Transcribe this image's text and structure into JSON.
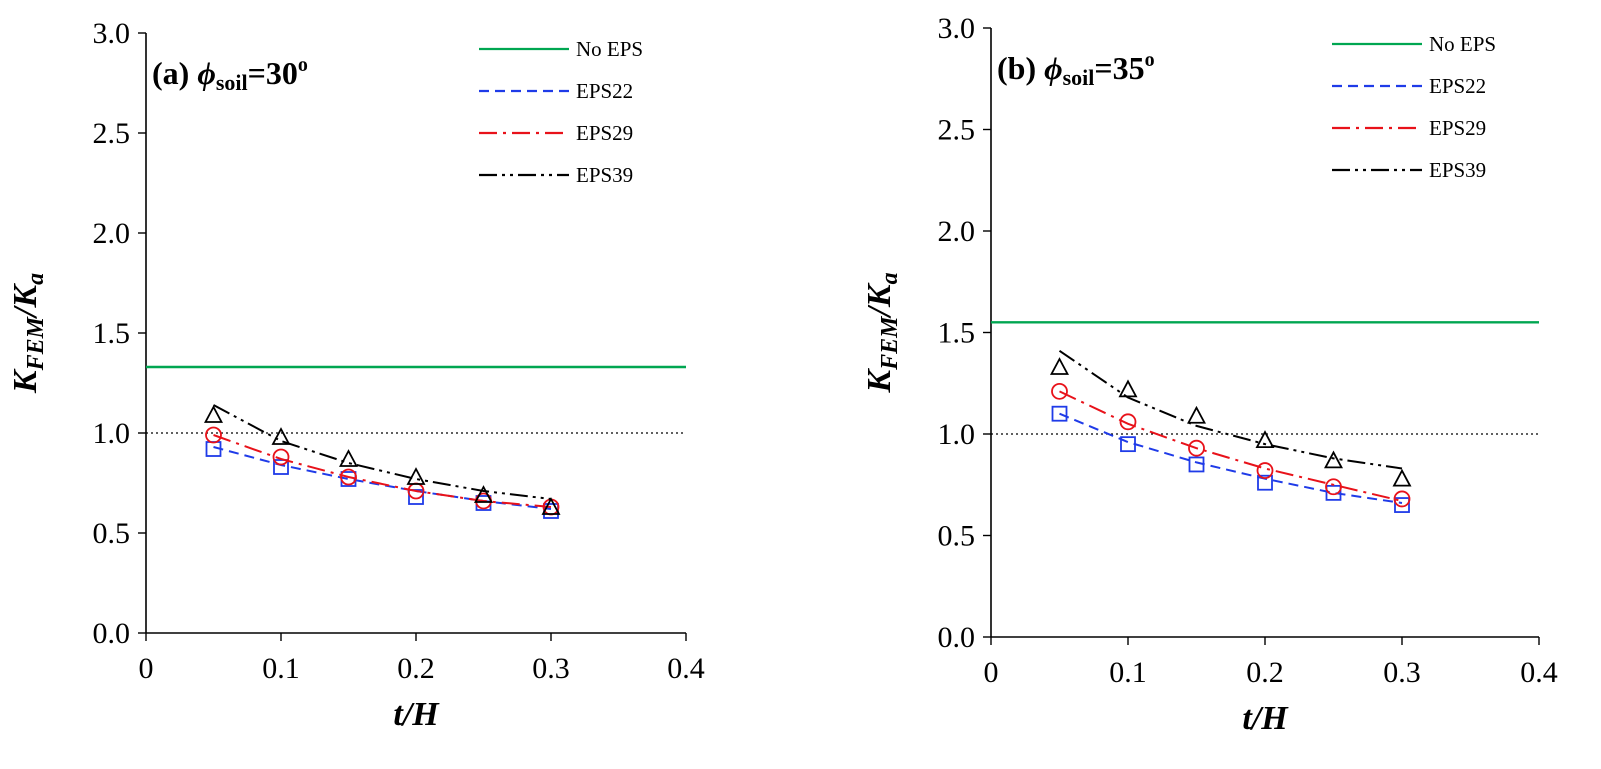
{
  "chart_data": [
    {
      "type": "line",
      "panel_label": "(a)",
      "title_symbol": "ϕ",
      "title_subscript": "soil",
      "title_value": "=30",
      "title_superscript": "o",
      "xlabel": "t/H",
      "ylabel_main": "K",
      "ylabel_sub1": "FEM",
      "ylabel_slash": "/K",
      "ylabel_sub2": "a",
      "xlim": [
        0,
        0.4
      ],
      "ylim": [
        0,
        3.0
      ],
      "xticks": [
        "0",
        "0.1",
        "0.2",
        "0.3",
        "0.4"
      ],
      "yticks": [
        "0.0",
        "0.5",
        "1.0",
        "1.5",
        "2.0",
        "2.5",
        "3.0"
      ],
      "reference_line_y": 1.0,
      "legend_position": "top-right",
      "x": [
        0.05,
        0.1,
        0.15,
        0.2,
        0.25,
        0.3
      ],
      "series": [
        {
          "name": "No EPS",
          "color": "#00a651",
          "style": "solid",
          "marker": "none",
          "constant": 1.33
        },
        {
          "name": "EPS22",
          "color": "#1f3be8",
          "style": "dashed",
          "marker": "square",
          "values": [
            0.92,
            0.83,
            0.77,
            0.68,
            0.65,
            0.61
          ],
          "fit": [
            0.93,
            0.84,
            0.77,
            0.71,
            0.66,
            0.62
          ]
        },
        {
          "name": "EPS29",
          "color": "#e8121a",
          "style": "dashdot",
          "marker": "circle",
          "values": [
            0.99,
            0.88,
            0.78,
            0.71,
            0.66,
            0.63
          ],
          "fit": [
            0.99,
            0.87,
            0.78,
            0.71,
            0.66,
            0.63
          ]
        },
        {
          "name": "EPS39",
          "color": "#000000",
          "style": "dashdotdot",
          "marker": "triangle",
          "values": [
            1.09,
            0.98,
            0.87,
            0.78,
            0.69,
            0.63
          ],
          "fit": [
            1.14,
            0.96,
            0.85,
            0.77,
            0.71,
            0.67
          ]
        }
      ]
    },
    {
      "type": "line",
      "panel_label": "(b)",
      "title_symbol": "ϕ",
      "title_subscript": "soil",
      "title_value": "=35",
      "title_superscript": "o",
      "xlabel": "t/H",
      "ylabel_main": "K",
      "ylabel_sub1": "FEM",
      "ylabel_slash": "/K",
      "ylabel_sub2": "a",
      "xlim": [
        0,
        0.4
      ],
      "ylim": [
        0,
        3.0
      ],
      "xticks": [
        "0",
        "0.1",
        "0.2",
        "0.3",
        "0.4"
      ],
      "yticks": [
        "0.0",
        "0.5",
        "1.0",
        "1.5",
        "2.0",
        "2.5",
        "3.0"
      ],
      "reference_line_y": 1.0,
      "legend_position": "top-right",
      "x": [
        0.05,
        0.1,
        0.15,
        0.2,
        0.25,
        0.3
      ],
      "series": [
        {
          "name": "No EPS",
          "color": "#00a651",
          "style": "solid",
          "marker": "none",
          "constant": 1.55
        },
        {
          "name": "EPS22",
          "color": "#1f3be8",
          "style": "dashed",
          "marker": "square",
          "values": [
            1.1,
            0.95,
            0.85,
            0.76,
            0.71,
            0.65
          ],
          "fit": [
            1.1,
            0.96,
            0.86,
            0.78,
            0.71,
            0.66
          ]
        },
        {
          "name": "EPS29",
          "color": "#e8121a",
          "style": "dashdot",
          "marker": "circle",
          "values": [
            1.21,
            1.06,
            0.93,
            0.82,
            0.74,
            0.68
          ],
          "fit": [
            1.21,
            1.05,
            0.93,
            0.83,
            0.75,
            0.67
          ]
        },
        {
          "name": "EPS39",
          "color": "#000000",
          "style": "dashdotdot",
          "marker": "triangle",
          "values": [
            1.33,
            1.22,
            1.09,
            0.97,
            0.87,
            0.78
          ],
          "fit": [
            1.41,
            1.18,
            1.04,
            0.95,
            0.88,
            0.83
          ]
        }
      ]
    }
  ]
}
